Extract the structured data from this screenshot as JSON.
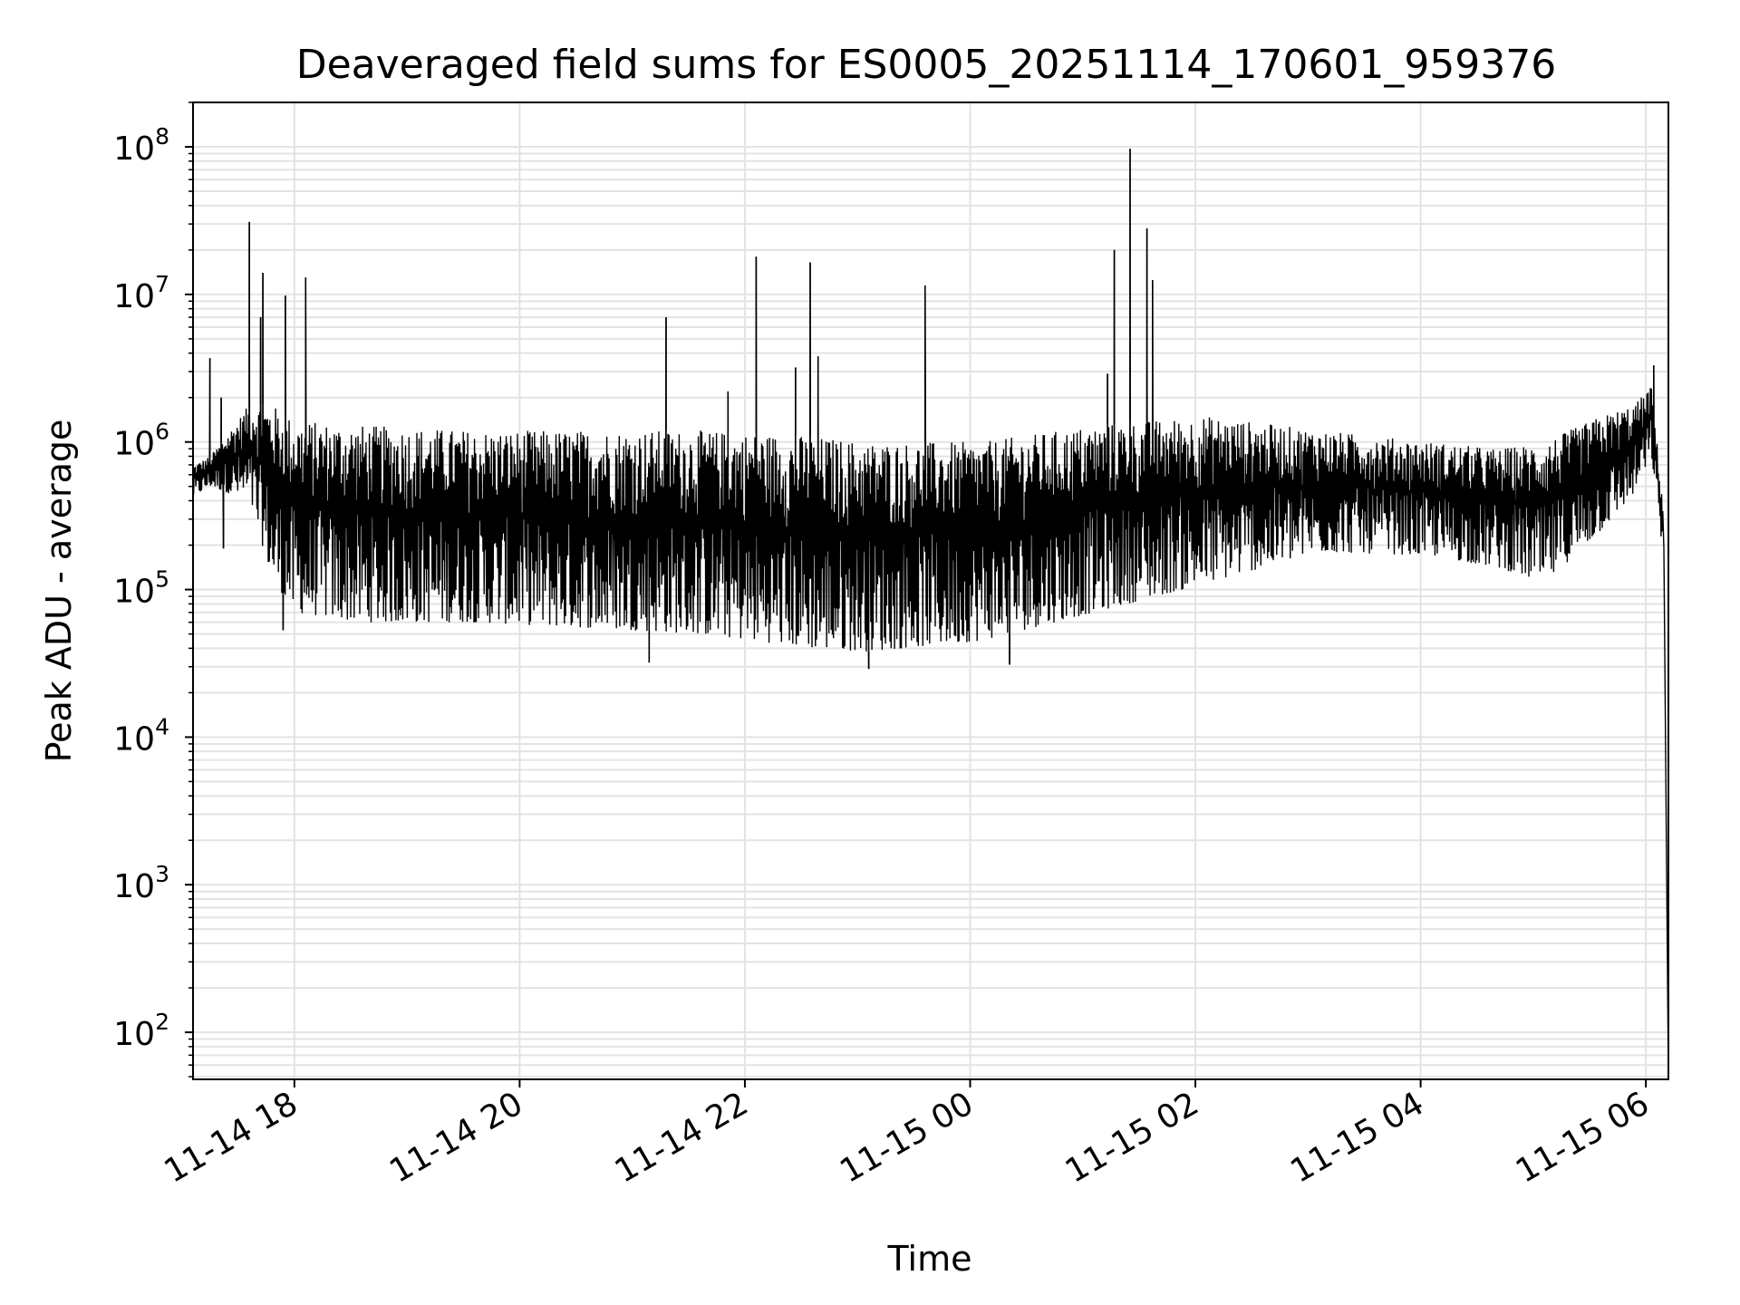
{
  "chart_data": {
    "type": "line",
    "title": "Deaveraged field sums for ES0005_20251114_170601_959376",
    "xlabel": "Time",
    "ylabel": "Peak ADU - average",
    "yscale": "log",
    "ylim": [
      48,
      200000000
    ],
    "xlim_hours": [
      0.0,
      13.1
    ],
    "grid": true,
    "x_ticks": [
      {
        "hour": 0.9,
        "label": "11-14 18"
      },
      {
        "hour": 2.9,
        "label": "11-14 20"
      },
      {
        "hour": 4.9,
        "label": "11-14 22"
      },
      {
        "hour": 6.9,
        "label": "11-15 00"
      },
      {
        "hour": 8.9,
        "label": "11-15 02"
      },
      {
        "hour": 10.9,
        "label": "11-15 04"
      },
      {
        "hour": 12.9,
        "label": "11-15 06"
      }
    ],
    "y_ticks": [
      {
        "value": 100,
        "base": "10",
        "exp": "2"
      },
      {
        "value": 1000,
        "base": "10",
        "exp": "3"
      },
      {
        "value": 10000,
        "base": "10",
        "exp": "4"
      },
      {
        "value": 100000,
        "base": "10",
        "exp": "5"
      },
      {
        "value": 1000000,
        "base": "10",
        "exp": "6"
      },
      {
        "value": 10000000,
        "base": "10",
        "exp": "7"
      },
      {
        "value": 100000000,
        "base": "10",
        "exp": "8"
      }
    ],
    "series": [
      {
        "name": "Peak ADU - average",
        "envelope_hours": [
          0.0,
          0.15,
          0.5,
          0.7,
          0.9,
          1.5,
          2.5,
          3.5,
          4.5,
          5.5,
          6.0,
          7.0,
          8.0,
          9.0,
          10.0,
          11.0,
          11.6,
          12.0,
          12.5,
          12.8,
          12.95,
          13.05
        ],
        "envelope_upper": [
          700000,
          800000,
          1800000,
          1800000,
          1400000,
          1300000,
          1200000,
          1200000,
          1200000,
          1100000,
          1000000,
          1000000,
          1300000,
          1500000,
          1200000,
          1000000,
          900000,
          1000000,
          1500000,
          1800000,
          2400000,
          400000
        ],
        "envelope_lower": [
          420000,
          500000,
          400000,
          120000,
          70000,
          60000,
          60000,
          55000,
          50000,
          40000,
          38000,
          45000,
          70000,
          110000,
          180000,
          170000,
          140000,
          110000,
          250000,
          450000,
          800000,
          180000
        ],
        "spikes": [
          {
            "hour": 0.15,
            "value": 3700000
          },
          {
            "hour": 0.25,
            "value": 2000000
          },
          {
            "hour": 0.5,
            "value": 31000000
          },
          {
            "hour": 0.62,
            "value": 14000000
          },
          {
            "hour": 0.6,
            "value": 7000000
          },
          {
            "hour": 0.82,
            "value": 9800000
          },
          {
            "hour": 1.0,
            "value": 13000000
          },
          {
            "hour": 4.2,
            "value": 7000000
          },
          {
            "hour": 4.75,
            "value": 2200000
          },
          {
            "hour": 5.0,
            "value": 18000000
          },
          {
            "hour": 5.35,
            "value": 3200000
          },
          {
            "hour": 5.48,
            "value": 16500000
          },
          {
            "hour": 5.55,
            "value": 3800000
          },
          {
            "hour": 6.5,
            "value": 11500000
          },
          {
            "hour": 8.12,
            "value": 2900000
          },
          {
            "hour": 8.18,
            "value": 20000000
          },
          {
            "hour": 8.32,
            "value": 97000000
          },
          {
            "hour": 8.47,
            "value": 28000000
          },
          {
            "hour": 8.52,
            "value": 12500000
          },
          {
            "hour": 12.97,
            "value": 3300000
          }
        ],
        "dips": [
          {
            "hour": 0.27,
            "value": 190000
          },
          {
            "hour": 0.8,
            "value": 53000
          },
          {
            "hour": 4.05,
            "value": 32000
          },
          {
            "hour": 6.0,
            "value": 29000
          },
          {
            "hour": 7.25,
            "value": 31000
          }
        ],
        "end": [
          {
            "hour": 13.06,
            "value": 190000
          },
          {
            "hour": 13.1,
            "value": 48
          }
        ]
      }
    ]
  }
}
